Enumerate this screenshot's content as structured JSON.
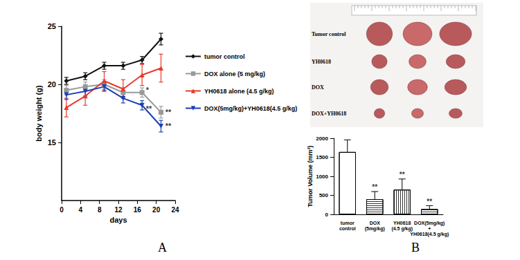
{
  "chart_data": [
    {
      "type": "line",
      "xlabel": "days",
      "ylabel": "body weight (g)",
      "xlim": [
        0,
        24
      ],
      "xticks": [
        0,
        4,
        8,
        12,
        16,
        20,
        24
      ],
      "ylim": [
        10,
        25
      ],
      "yticks": [
        15,
        20,
        25
      ],
      "legend": "right",
      "series": [
        {
          "name": "tumor control",
          "color": "#111111",
          "marker": "diamond",
          "x": [
            1,
            5,
            9,
            13,
            17,
            21
          ],
          "values": [
            20.3,
            20.7,
            21.6,
            21.6,
            22.1,
            23.9
          ],
          "errors": [
            0.3,
            0.3,
            0.3,
            0.3,
            0.3,
            0.5
          ]
        },
        {
          "name": "DOX alone (5 mg/kg)",
          "color": "#999999",
          "marker": "square",
          "x": [
            1,
            5,
            9,
            13,
            17,
            21
          ],
          "values": [
            19.5,
            19.8,
            20.0,
            19.3,
            19.3,
            17.6
          ],
          "errors": [
            0.4,
            0.4,
            0.4,
            0.4,
            0.4,
            0.5
          ]
        },
        {
          "name": "YH0618 alone (4.5 g/kg)",
          "color": "#e8392a",
          "marker": "triangle",
          "x": [
            1,
            5,
            9,
            13,
            17,
            21
          ],
          "values": [
            18.0,
            19.0,
            20.3,
            19.6,
            20.8,
            21.4
          ],
          "errors": [
            0.8,
            0.8,
            0.8,
            0.8,
            0.9,
            1.2
          ]
        },
        {
          "name": "DOX(5mg/kg)+YH0618(4.5 g/kg)",
          "color": "#1a3fb5",
          "marker": "triangle-down",
          "x": [
            1,
            5,
            9,
            13,
            17,
            21
          ],
          "values": [
            19.1,
            19.4,
            19.8,
            18.8,
            18.2,
            16.4
          ],
          "errors": [
            0.4,
            0.4,
            0.4,
            0.4,
            0.4,
            0.5
          ]
        }
      ],
      "annotations": [
        {
          "x": 17.8,
          "y": 19.5,
          "text": "*"
        },
        {
          "x": 17.8,
          "y": 17.9,
          "text": "**"
        },
        {
          "x": 21.9,
          "y": 17.6,
          "text": "**"
        },
        {
          "x": 21.9,
          "y": 16.4,
          "text": "**"
        }
      ]
    },
    {
      "type": "bar",
      "ylabel": "Tumor Volume (mm³)",
      "categories": [
        "tumor\ncontrol",
        "DOX\n(5mg/kg)",
        "YH0618\n(4.5 g/kg)",
        "DOX(5mg/kg)\n+\nYH0618(4.5 g/kg)"
      ],
      "values": [
        1640,
        400,
        650,
        140
      ],
      "errors": [
        320,
        200,
        280,
        90
      ],
      "color": "#000000",
      "ylim": [
        0,
        2000
      ],
      "yticks": [
        0,
        500,
        1000,
        1500,
        2000
      ],
      "annotations": [
        {
          "category": 1,
          "y": 620,
          "text": "**"
        },
        {
          "category": 2,
          "y": 950,
          "text": "**"
        },
        {
          "category": 3,
          "y": 250,
          "text": "**"
        }
      ]
    }
  ],
  "figure": {
    "panel_labels": [
      "A",
      "B"
    ],
    "photo": {
      "row_labels": [
        "Tumor control",
        "YH0618",
        "DOX",
        "DOX+YH0618"
      ]
    }
  }
}
